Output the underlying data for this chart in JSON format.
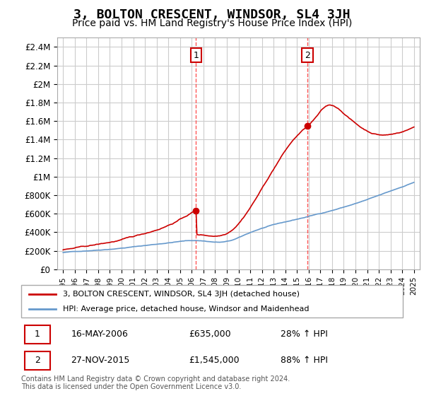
{
  "title": "3, BOLTON CRESCENT, WINDSOR, SL4 3JH",
  "subtitle": "Price paid vs. HM Land Registry's House Price Index (HPI)",
  "title_fontsize": 13,
  "subtitle_fontsize": 10,
  "ylabel_ticks": [
    "£0",
    "£200K",
    "£400K",
    "£600K",
    "£800K",
    "£1M",
    "£1.2M",
    "£1.4M",
    "£1.6M",
    "£1.8M",
    "£2M",
    "£2.2M",
    "£2.4M"
  ],
  "ytick_values": [
    0,
    200000,
    400000,
    600000,
    800000,
    1000000,
    1200000,
    1400000,
    1600000,
    1800000,
    2000000,
    2200000,
    2400000
  ],
  "ylim": [
    0,
    2500000
  ],
  "xlim_start": 1994.5,
  "xlim_end": 2025.5,
  "xtick_years": [
    1995,
    1996,
    1997,
    1998,
    1999,
    2000,
    2001,
    2002,
    2003,
    2004,
    2005,
    2006,
    2007,
    2008,
    2009,
    2010,
    2011,
    2012,
    2013,
    2014,
    2015,
    2016,
    2017,
    2018,
    2019,
    2020,
    2021,
    2022,
    2023,
    2024,
    2025
  ],
  "vline1_x": 2006.37,
  "vline2_x": 2015.9,
  "sale1_x": 2006.37,
  "sale1_y": 635000,
  "sale2_x": 2015.9,
  "sale2_y": 1545000,
  "sale_marker_color": "#cc0000",
  "vline_color": "#ff4444",
  "hpi_line_color": "#6699cc",
  "price_line_color": "#cc0000",
  "grid_color": "#cccccc",
  "legend_line1": "3, BOLTON CRESCENT, WINDSOR, SL4 3JH (detached house)",
  "legend_line2": "HPI: Average price, detached house, Windsor and Maidenhead",
  "footer": "Contains HM Land Registry data © Crown copyright and database right 2024.\nThis data is licensed under the Open Government Licence v3.0."
}
